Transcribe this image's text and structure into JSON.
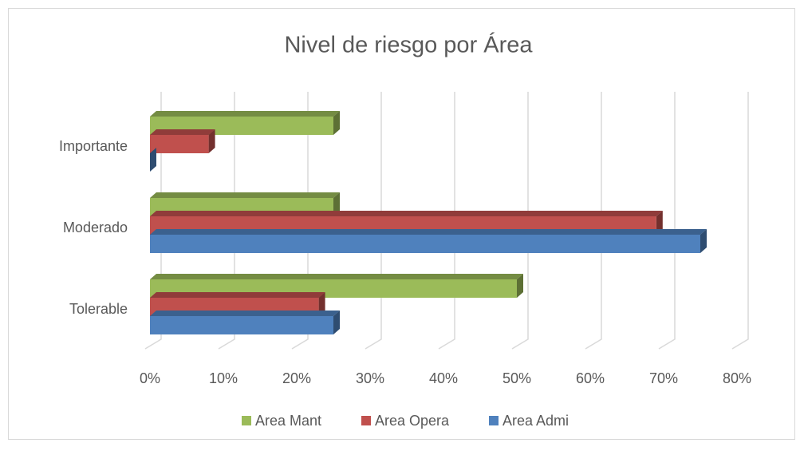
{
  "chart_data": {
    "type": "bar3d_horizontal",
    "title": "Nivel de riesgo por Área",
    "categories": [
      "Tolerable",
      "Moderado",
      "Importante"
    ],
    "series": [
      {
        "name": "Area Mant",
        "color": "#9bbb59",
        "values": [
          50,
          25,
          25
        ]
      },
      {
        "name": "Area Opera",
        "color": "#c0504d",
        "values": [
          23,
          69,
          8
        ]
      },
      {
        "name": "Area Admi",
        "color": "#4f81bd",
        "values": [
          25,
          75,
          0
        ]
      }
    ],
    "xlim": [
      0,
      80
    ],
    "xticks": [
      {
        "value": 0,
        "label": "0%"
      },
      {
        "value": 10,
        "label": "10%"
      },
      {
        "value": 20,
        "label": "20%"
      },
      {
        "value": 30,
        "label": "30%"
      },
      {
        "value": 40,
        "label": "40%"
      },
      {
        "value": 50,
        "label": "50%"
      },
      {
        "value": 60,
        "label": "60%"
      },
      {
        "value": 70,
        "label": "70%"
      },
      {
        "value": 80,
        "label": "80%"
      }
    ],
    "grid": true,
    "legend": "bottom"
  }
}
